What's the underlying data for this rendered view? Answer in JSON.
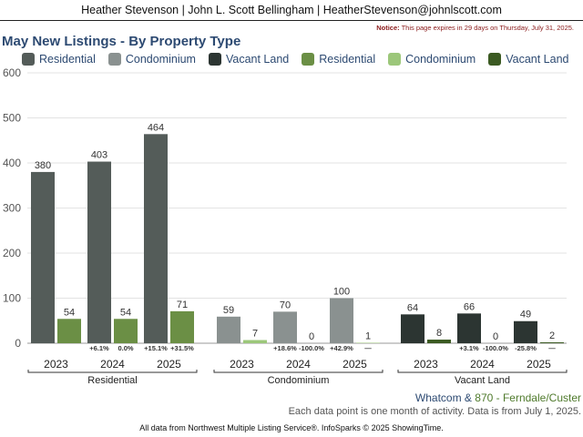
{
  "header": {
    "text": "Heather Stevenson | John L. Scott Bellingham | HeatherStevenson@johnlscott.com"
  },
  "notice": {
    "label": "Notice:",
    "text": " This page expires in 29 days on Thursday, July 31, 2025."
  },
  "footer": {
    "area_part1": "Whatcom",
    "area_amp": " & ",
    "area_part2": "870 - Ferndale/Custer",
    "note": "Each data point is one month of activity. Data is from July 1, 2025.",
    "source": "All data from Northwest Multiple Listing Service®. InfoSparks © 2025 ShowingTime."
  },
  "chart_data": {
    "type": "bar",
    "title": "May New Listings - By Property Type",
    "ylim": [
      0,
      600
    ],
    "yticks": [
      0,
      100,
      200,
      300,
      400,
      500,
      600
    ],
    "grid": true,
    "legend_position": "top",
    "legend": [
      {
        "label": "Residential",
        "color": "#545c59"
      },
      {
        "label": "Condominium",
        "color": "#8a9190"
      },
      {
        "label": "Vacant Land",
        "color": "#2c3532"
      },
      {
        "label": "Residential",
        "color": "#6b8f45"
      },
      {
        "label": "Condominium",
        "color": "#9cc77a"
      },
      {
        "label": "Vacant Land",
        "color": "#3b5a22"
      }
    ],
    "groups": [
      {
        "name": "Residential",
        "years": [
          "2023",
          "2024",
          "2025"
        ],
        "primary": [
          380,
          403,
          464
        ],
        "secondary": [
          54,
          54,
          71
        ],
        "primary_color": "#545c59",
        "secondary_color": "#6b8f45",
        "changes": [
          [
            "",
            ""
          ],
          [
            "+6.1%",
            "0.0%"
          ],
          [
            "+15.1%",
            "+31.5%"
          ]
        ]
      },
      {
        "name": "Condominium",
        "years": [
          "2023",
          "2024",
          "2025"
        ],
        "primary": [
          59,
          70,
          100
        ],
        "secondary": [
          7,
          0,
          1
        ],
        "primary_color": "#8a9190",
        "secondary_color": "#9cc77a",
        "changes": [
          [
            "",
            ""
          ],
          [
            "+18.6%",
            "-100.0%"
          ],
          [
            "+42.9%",
            "—"
          ]
        ]
      },
      {
        "name": "Vacant Land",
        "years": [
          "2023",
          "2024",
          "2025"
        ],
        "primary": [
          64,
          66,
          49
        ],
        "secondary": [
          8,
          0,
          2
        ],
        "primary_color": "#2c3532",
        "secondary_color": "#3b5a22",
        "changes": [
          [
            "",
            ""
          ],
          [
            "+3.1%",
            "-100.0%"
          ],
          [
            "-25.8%",
            "—"
          ]
        ]
      }
    ]
  }
}
